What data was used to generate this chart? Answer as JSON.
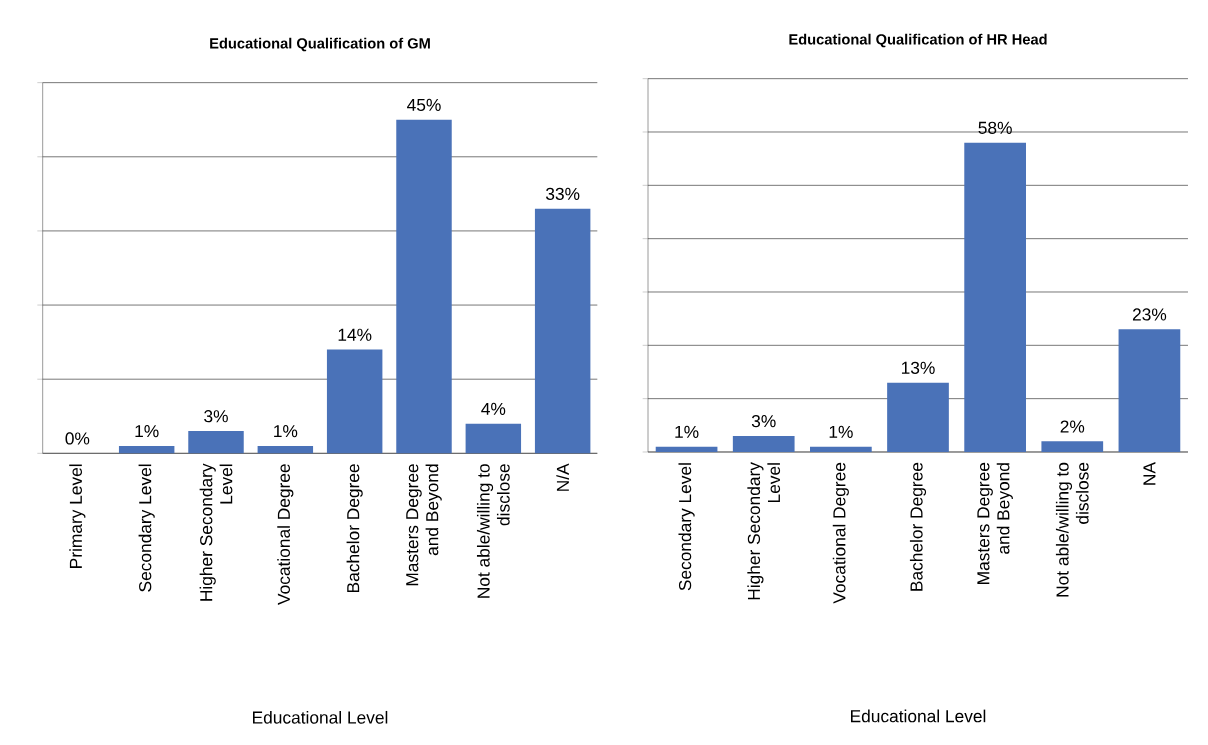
{
  "chart_data": [
    {
      "type": "bar",
      "title": "Educational Qualification of GM",
      "xlabel": "Educational Level",
      "categories": [
        "Primary Level",
        "Secondary Level",
        "Higher Secondary Level",
        "Vocational Degree",
        "Bachelor Degree",
        "Masters Degree and Beyond",
        "Not able/willing to disclose",
        "N/A"
      ],
      "values": [
        0,
        1,
        3,
        1,
        14,
        45,
        4,
        33
      ],
      "value_labels": [
        "0%",
        "1%",
        "3%",
        "1%",
        "14%",
        "45%",
        "4%",
        "33%"
      ],
      "color": "#4a72b8",
      "ylim": [
        0,
        50
      ],
      "yticks": [
        {
          "value": 0,
          "label": null
        },
        {
          "value": 10,
          "label": null
        },
        {
          "value": 20,
          "label": null
        },
        {
          "value": 30,
          "label": null
        },
        {
          "value": 40,
          "label": null
        },
        {
          "value": 50,
          "label": null
        }
      ],
      "grid": "y",
      "tick_labels": "x"
    },
    {
      "type": "bar",
      "title": "Educational Qualification of HR Head",
      "xlabel": "Educational Level",
      "categories": [
        "Secondary Level",
        "Higher Secondary Level",
        "Vocational Degree",
        "Bachelor Degree",
        "Masters Degree and Beyond",
        "Not able/willing to disclose",
        "NA"
      ],
      "values": [
        1,
        3,
        1,
        13,
        58,
        2,
        23
      ],
      "value_labels": [
        "1%",
        "3%",
        "1%",
        "13%",
        "58%",
        "2%",
        "23%"
      ],
      "color": "#4a72b8",
      "ylim": [
        0,
        70
      ],
      "yticks": [
        {
          "value": 0,
          "label": null
        },
        {
          "value": 10,
          "label": null
        },
        {
          "value": 20,
          "label": null
        },
        {
          "value": 30,
          "label": null
        },
        {
          "value": 40,
          "label": null
        },
        {
          "value": 50,
          "label": null
        },
        {
          "value": 60,
          "label": null
        },
        {
          "value": 70,
          "label": null
        }
      ],
      "grid": "y",
      "tick_labels": "x"
    }
  ]
}
